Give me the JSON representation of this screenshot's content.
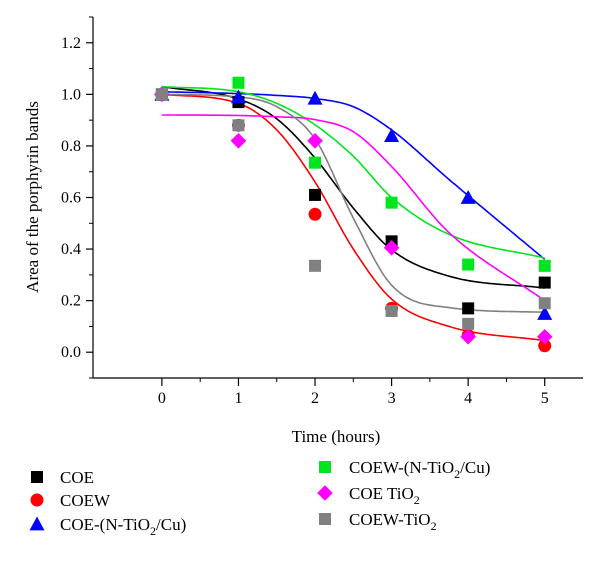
{
  "chart_data": {
    "type": "scatter",
    "title": "",
    "xlabel": "Time (hours)",
    "ylabel": "Area of the porphyrin bands",
    "xlim": [
      -0.9,
      5.5
    ],
    "ylim": [
      -0.1,
      1.3
    ],
    "xticks": [
      0,
      1,
      2,
      3,
      4,
      5
    ],
    "xtick_labels": [
      "0",
      "1",
      "2",
      "3",
      "4",
      "5"
    ],
    "yticks": [
      0.0,
      0.2,
      0.4,
      0.6,
      0.8,
      1.0,
      1.2
    ],
    "ytick_labels": [
      "0.0",
      "0.2",
      "0.4",
      "0.6",
      "0.8",
      "1.0",
      "1.2"
    ],
    "grid": false,
    "legend_position": "below",
    "series": [
      {
        "name": "COE",
        "name_main": "COE",
        "name_sub": "",
        "name_tail": "",
        "marker": "square",
        "color": "#000000",
        "x": [
          0,
          1,
          2,
          3,
          4,
          5
        ],
        "values": [
          1.0,
          0.97,
          0.61,
          0.43,
          0.17,
          0.27
        ],
        "fit": [
          1.03,
          0.982,
          0.905,
          0.753,
          0.559,
          0.397,
          0.295,
          0.249
        ]
      },
      {
        "name": "COEW",
        "name_main": "COEW",
        "name_sub": "",
        "name_tail": "",
        "marker": "circle",
        "color": "#ff0000",
        "x": [
          0,
          1,
          2,
          3,
          4,
          5
        ],
        "values": [
          1.0,
          0.88,
          0.535,
          0.17,
          0.065,
          0.025
        ],
        "fit": [
          1.0,
          0.965,
          0.862,
          0.66,
          0.4,
          0.206,
          0.1,
          0.045
        ]
      },
      {
        "name": "COE-(N-TiO2/Cu)",
        "name_main": "COE-(N-TiO",
        "name_sub": "2",
        "name_tail": "/Cu)",
        "marker": "triangle",
        "color": "#0000ff",
        "x": [
          0,
          1,
          2,
          3,
          4,
          5
        ],
        "values": [
          1.0,
          0.99,
          0.985,
          0.84,
          0.6,
          0.15
        ],
        "fit": [
          1.01,
          1.003,
          0.996,
          0.984,
          0.952,
          0.862,
          0.67,
          0.36
        ]
      },
      {
        "name": "COEW-(N-TiO2/Cu)",
        "name_main": "COEW-(N-TiO",
        "name_sub": "2",
        "name_tail": "/Cu)",
        "marker": "square",
        "color": "#00e61e",
        "x": [
          0,
          1,
          2,
          3,
          4,
          5
        ],
        "values": [
          1.0,
          1.045,
          0.735,
          0.58,
          0.34,
          0.335
        ],
        "fit": [
          1.03,
          1.01,
          0.965,
          0.882,
          0.76,
          0.6,
          0.457,
          0.365
        ]
      },
      {
        "name": "COE TiO2",
        "name_main": "COE TiO",
        "name_sub": "2",
        "name_tail": "",
        "marker": "diamond",
        "color": "#ff00ff",
        "x": [
          0,
          1,
          2,
          3,
          4,
          5
        ],
        "values": [
          1.0,
          0.82,
          0.82,
          0.405,
          0.06,
          0.06
        ],
        "fit": [
          0.92,
          0.918,
          0.913,
          0.902,
          0.855,
          0.72,
          0.464,
          0.2
        ]
      },
      {
        "name": "COEW-TiO2",
        "name_main": "COEW-TiO",
        "name_sub": "2",
        "name_tail": "",
        "marker": "square",
        "color": "#808080",
        "x": [
          0,
          1,
          2,
          3,
          4,
          5
        ],
        "values": [
          1.0,
          0.88,
          0.335,
          0.16,
          0.11,
          0.19
        ],
        "fit": [
          1.0,
          0.99,
          0.952,
          0.827,
          0.52,
          0.26,
          0.173,
          0.155
        ]
      }
    ]
  }
}
